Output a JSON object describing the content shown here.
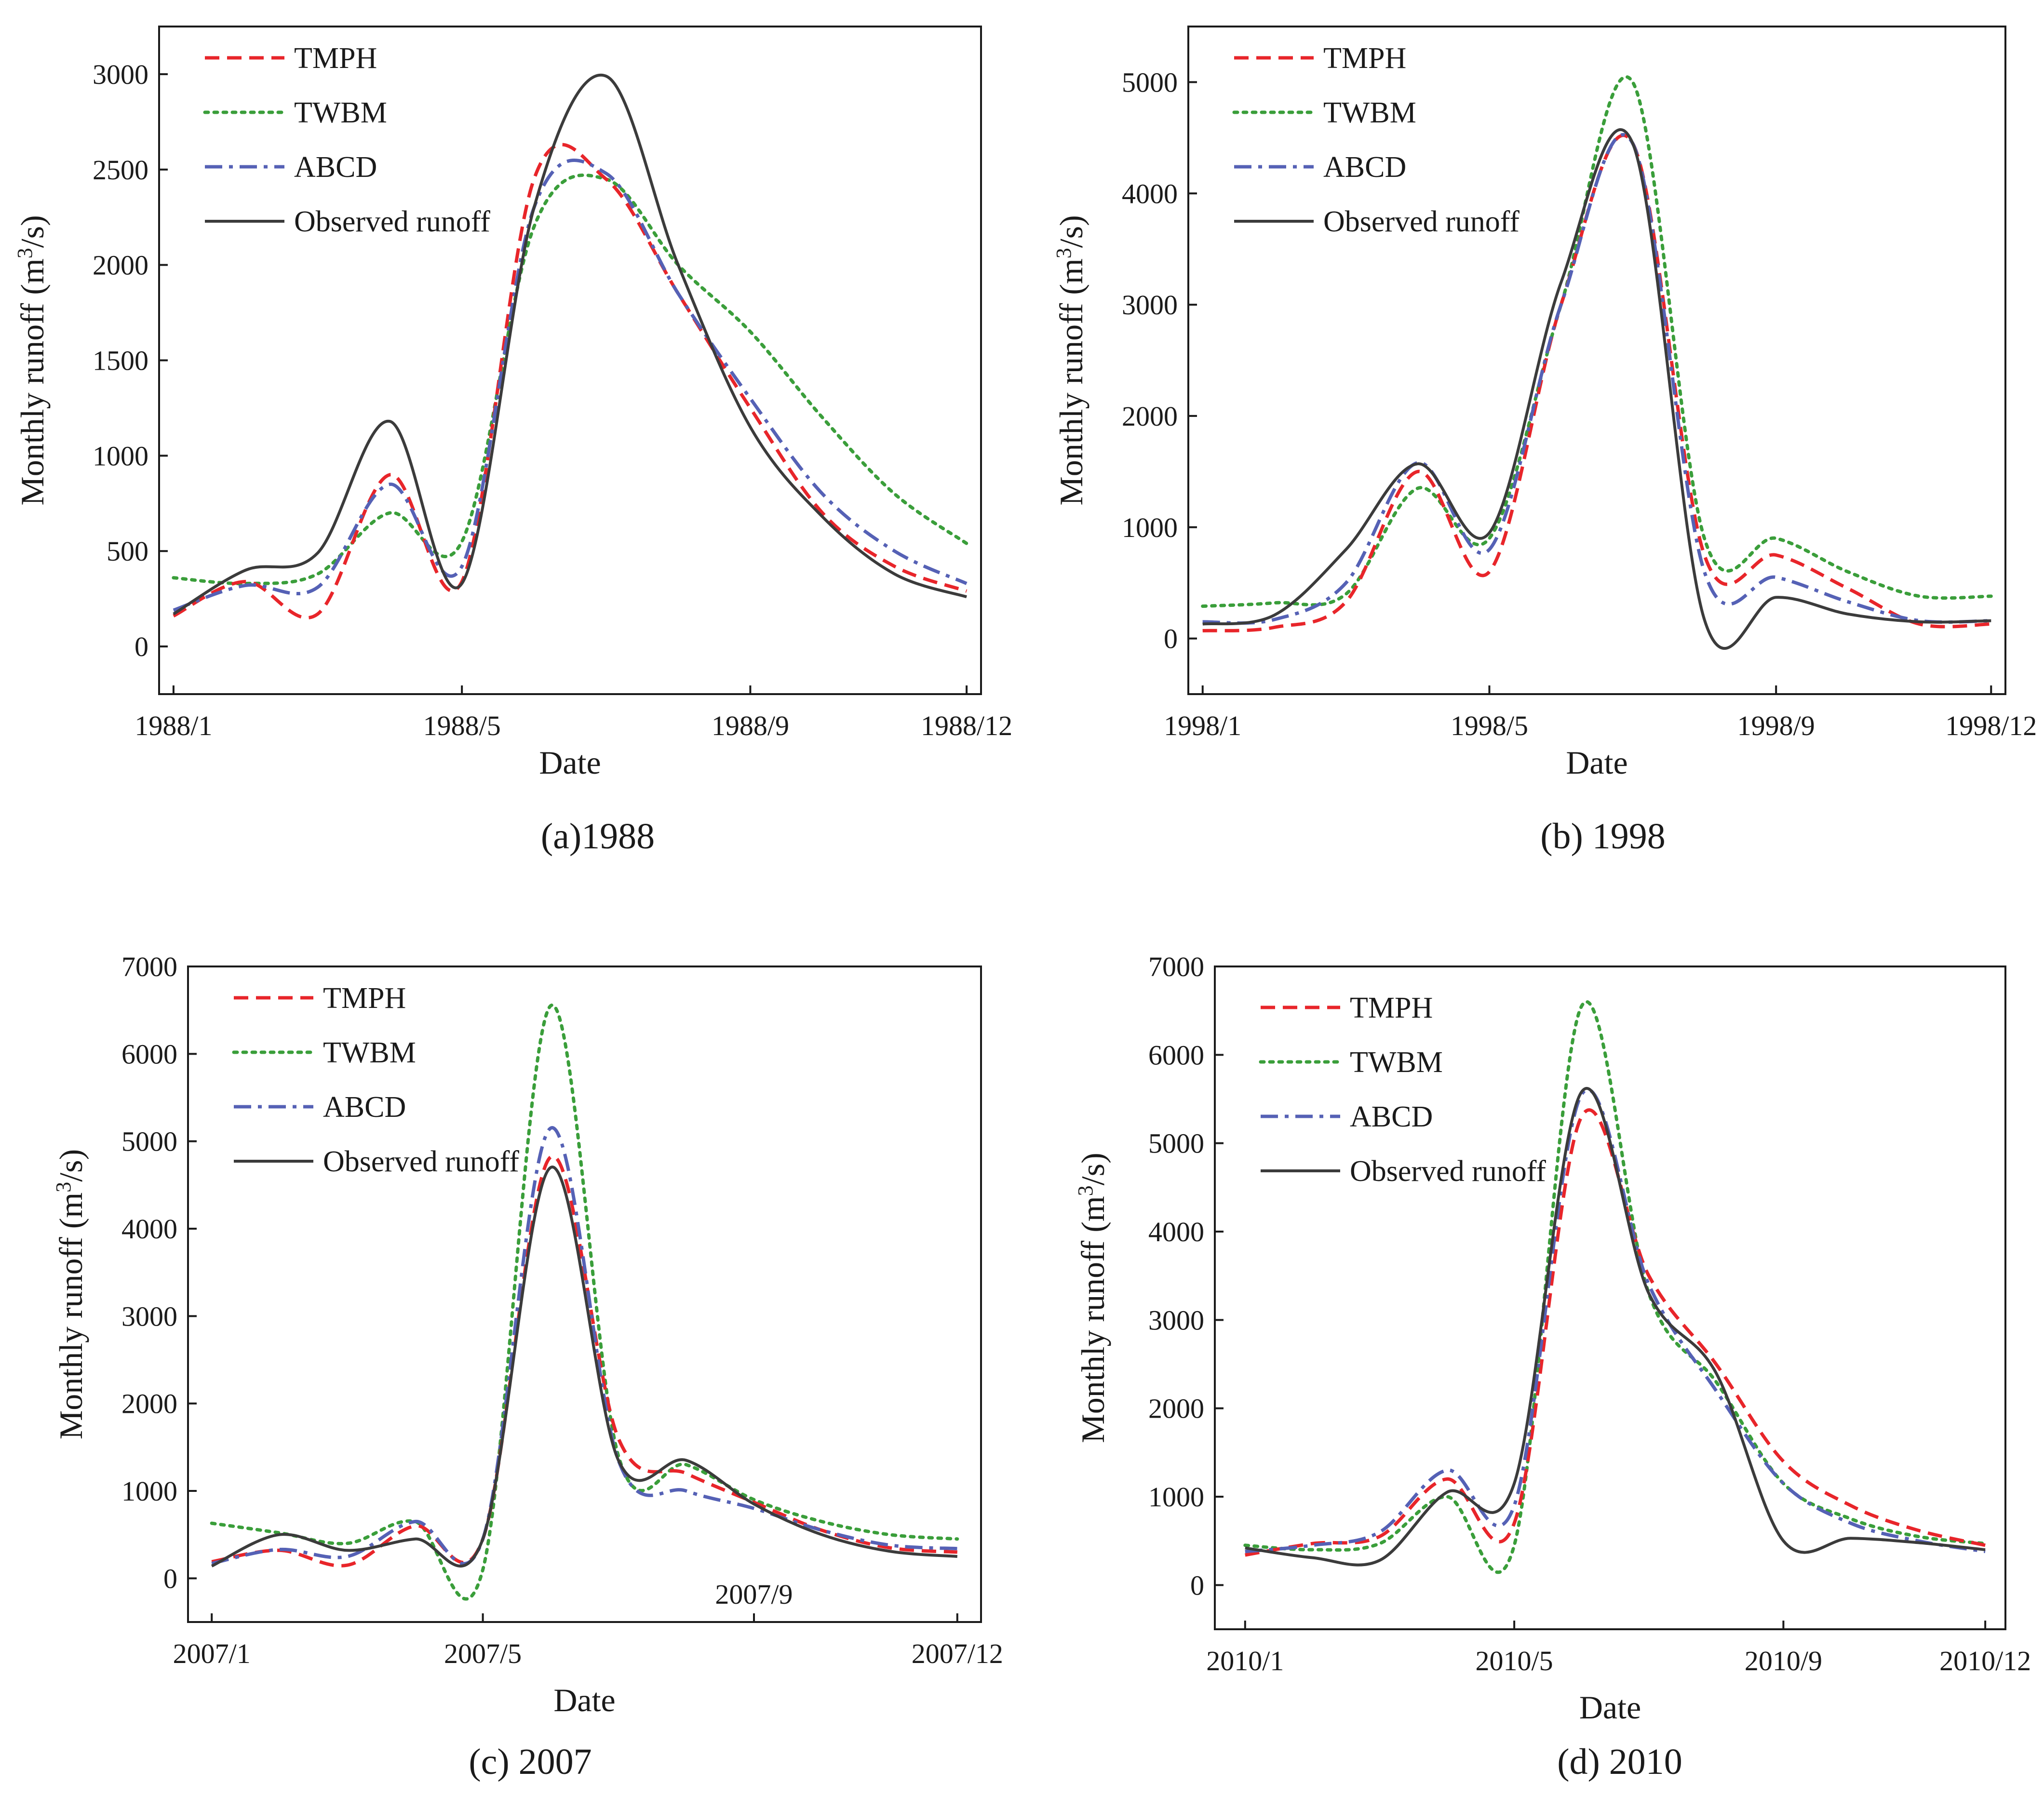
{
  "figure": {
    "series_styles": [
      {
        "name": "TMPH",
        "color": "#e8252a",
        "dash": "dashed"
      },
      {
        "name": "TWBM",
        "color": "#3a9e3a",
        "dash": "dotted"
      },
      {
        "name": "ABCD",
        "color": "#5561b5",
        "dash": "dash-dot"
      },
      {
        "name": "Observed runoff",
        "color": "#3b3b3b",
        "dash": "solid"
      }
    ]
  },
  "chart_data": [
    {
      "type": "line",
      "caption": "(a)1988",
      "xlabel": "Date",
      "ylabel": "Monthly runoff",
      "ylabel_unit": "(m",
      "ylabel_sup": "3",
      "ylabel_unit_end": "/s)",
      "x": [
        1,
        2,
        3,
        4,
        5,
        6,
        7,
        8,
        9,
        10,
        11,
        12
      ],
      "xlim": [
        0.8,
        12.2
      ],
      "ylim": [
        -250,
        3250
      ],
      "yticks": [
        0,
        500,
        1000,
        1500,
        2000,
        2500,
        3000
      ],
      "xticks": [
        {
          "x": 1,
          "label": "1988/1"
        },
        {
          "x": 5,
          "label": "1988/5"
        },
        {
          "x": 9,
          "label": "1988/9"
        },
        {
          "x": 12,
          "label": "1988/12"
        }
      ],
      "legend_position": "top-left",
      "series": [
        {
          "name": "TMPH",
          "values": [
            160,
            340,
            170,
            900,
            340,
            2450,
            2450,
            1850,
            1250,
            700,
            420,
            290
          ]
        },
        {
          "name": "TWBM",
          "values": [
            360,
            330,
            380,
            700,
            550,
            2200,
            2450,
            2000,
            1650,
            1200,
            800,
            540
          ]
        },
        {
          "name": "ABCD",
          "values": [
            190,
            320,
            310,
            850,
            420,
            2300,
            2480,
            1850,
            1300,
            800,
            500,
            330
          ]
        },
        {
          "name": "Observed runoff",
          "values": [
            170,
            400,
            490,
            1180,
            330,
            2300,
            2990,
            2000,
            1150,
            680,
            380,
            260
          ]
        }
      ]
    },
    {
      "type": "line",
      "caption": "(b) 1998",
      "xlabel": "Date",
      "ylabel": "Monthly runoff",
      "ylabel_unit": "(m",
      "ylabel_sup": "3",
      "ylabel_unit_end": "/s)",
      "x": [
        1,
        2,
        3,
        4,
        5,
        6,
        7,
        8,
        9,
        10,
        11,
        12
      ],
      "xlim": [
        0.8,
        12.2
      ],
      "ylim": [
        -500,
        5500
      ],
      "yticks": [
        0,
        1000,
        2000,
        3000,
        4000,
        5000
      ],
      "xticks": [
        {
          "x": 1,
          "label": "1998/1"
        },
        {
          "x": 5,
          "label": "1998/5"
        },
        {
          "x": 9,
          "label": "1998/9"
        },
        {
          "x": 12,
          "label": "1998/12"
        }
      ],
      "legend_position": "top-left",
      "series": [
        {
          "name": "TMPH",
          "values": [
            70,
            100,
            330,
            1500,
            600,
            3000,
            4450,
            750,
            750,
            450,
            130,
            130
          ]
        },
        {
          "name": "TWBM",
          "values": [
            290,
            320,
            400,
            1350,
            900,
            3000,
            5000,
            900,
            900,
            600,
            380,
            380
          ]
        },
        {
          "name": "ABCD",
          "values": [
            150,
            170,
            500,
            1580,
            800,
            3000,
            4450,
            600,
            550,
            330,
            160,
            160
          ]
        },
        {
          "name": "Observed runoff",
          "values": [
            130,
            210,
            800,
            1570,
            950,
            3200,
            4450,
            170,
            370,
            220,
            150,
            160
          ]
        }
      ]
    },
    {
      "type": "line",
      "caption": "(c) 2007",
      "xlabel": "Date",
      "ylabel": "Monthly runoff",
      "ylabel_unit": "(m",
      "ylabel_sup": "3",
      "ylabel_unit_end": "/s)",
      "x": [
        1,
        2,
        3,
        4,
        5,
        6,
        7,
        8,
        9,
        10,
        11,
        12
      ],
      "xlim": [
        0.65,
        12.35
      ],
      "ylim": [
        -500,
        7000
      ],
      "yticks": [
        0,
        1000,
        2000,
        3000,
        4000,
        5000,
        6000,
        7000
      ],
      "xticks": [
        {
          "x": 1,
          "label": "2007/1"
        },
        {
          "x": 5,
          "label": "2007/5"
        },
        {
          "x": 9,
          "label": "2007/9"
        },
        {
          "x": 12,
          "label": "2007/12"
        }
      ],
      "legend_position": "top-left",
      "series": [
        {
          "name": "TMPH",
          "values": [
            190,
            320,
            150,
            600,
            450,
            4820,
            1600,
            1200,
            870,
            550,
            350,
            300
          ]
        },
        {
          "name": "TWBM",
          "values": [
            630,
            520,
            400,
            650,
            100,
            6550,
            1400,
            1300,
            900,
            650,
            500,
            450
          ]
        },
        {
          "name": "ABCD",
          "values": [
            170,
            330,
            250,
            650,
            450,
            5150,
            1350,
            1000,
            800,
            550,
            380,
            340
          ]
        },
        {
          "name": "Observed runoff",
          "values": [
            140,
            500,
            320,
            450,
            450,
            4700,
            1350,
            1350,
            850,
            500,
            310,
            250
          ]
        }
      ]
    },
    {
      "type": "line",
      "caption": "(d) 2010",
      "xlabel": "Date",
      "ylabel": "Monthly runoff",
      "ylabel_unit": "(m",
      "ylabel_sup": "3",
      "ylabel_unit_end": "/s)",
      "x": [
        1,
        2,
        3,
        4,
        5,
        6,
        7,
        8,
        9,
        10,
        11,
        12
      ],
      "xlim": [
        0.55,
        12.3
      ],
      "ylim": [
        -500,
        7000
      ],
      "yticks": [
        0,
        1000,
        2000,
        3000,
        4000,
        5000,
        6000,
        7000
      ],
      "xticks": [
        {
          "x": 1,
          "label": "2010/1"
        },
        {
          "x": 5,
          "label": "2010/5"
        },
        {
          "x": 9,
          "label": "2010/9"
        },
        {
          "x": 12,
          "label": "2010/12"
        }
      ],
      "legend_position": "top-left",
      "series": [
        {
          "name": "TMPH",
          "values": [
            340,
            470,
            550,
            1200,
            700,
            5300,
            3500,
            2500,
            1400,
            900,
            620,
            450
          ]
        },
        {
          "name": "TWBM",
          "values": [
            450,
            400,
            470,
            1000,
            450,
            6550,
            3300,
            2300,
            1150,
            750,
            550,
            470
          ]
        },
        {
          "name": "ABCD",
          "values": [
            380,
            450,
            600,
            1300,
            900,
            5550,
            3400,
            2200,
            1150,
            700,
            500,
            380
          ]
        },
        {
          "name": "Observed runoff",
          "values": [
            420,
            310,
            280,
            1050,
            1150,
            5580,
            3300,
            2400,
            500,
            530,
            480,
            400
          ]
        }
      ]
    }
  ]
}
